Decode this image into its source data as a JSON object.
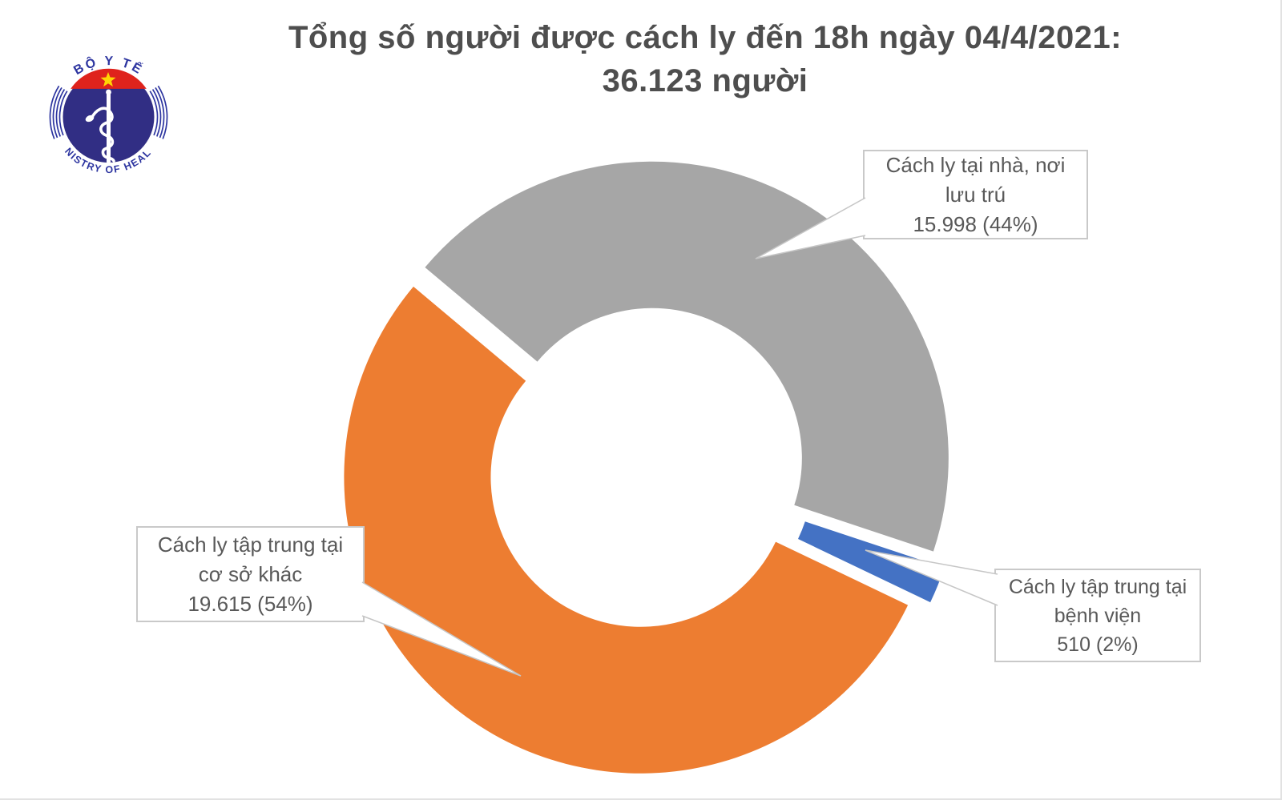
{
  "header": {
    "title_line1": "Tổng số người được cách ly đến 18h ngày 04/4/2021:",
    "title_line2": "36.123 người"
  },
  "logo": {
    "top_text": "BỘ Y TẾ",
    "bottom_text": "MINISTRY OF HEALTH",
    "colors": {
      "emblem_blue": "#312e84",
      "emblem_red": "#df231c",
      "star_yellow": "#ffd504",
      "ring_blue": "#2d35a0"
    }
  },
  "chart_data": {
    "type": "pie",
    "variant": "doughnut-exploded",
    "title": "Tổng số người được cách ly đến 18h ngày 04/4/2021: 36.123 người",
    "total_value": "36.123",
    "total_unit": "người",
    "start_angle_deg": -50,
    "clockwise": true,
    "hole_ratio": 0.5,
    "legend_position": "callouts",
    "slices": [
      {
        "id": "home-residence",
        "label": "Cách ly tại nhà, nơi lưu trú",
        "value": 15998,
        "value_display": "15.998",
        "percent": 44,
        "color": "#A6A6A6",
        "label_lines": [
          "Cách ly tại nhà, nơi",
          "lưu trú",
          "15.998 (44%)"
        ]
      },
      {
        "id": "hospital",
        "label": "Cách ly tập trung tại bệnh viện",
        "value": 510,
        "value_display": "510",
        "percent": 2,
        "color": "#4472C4",
        "label_lines": [
          "Cách ly tập trung tại",
          "bệnh viện",
          "510 (2%)"
        ]
      },
      {
        "id": "other-facility",
        "label": "Cách ly tập trung tại cơ sở khác",
        "value": 19615,
        "value_display": "19.615",
        "percent": 54,
        "color": "#ED7D31",
        "label_lines": [
          "Cách ly tập trung tại",
          "cơ sở khác",
          "19.615 (54%)"
        ]
      }
    ]
  }
}
